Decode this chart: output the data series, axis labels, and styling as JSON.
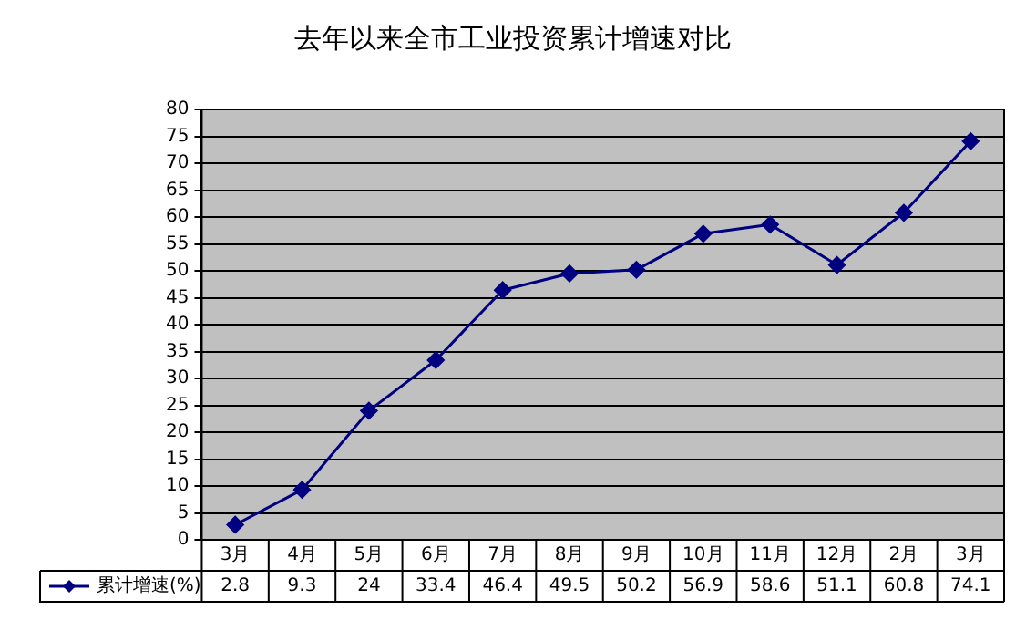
{
  "chart_data": {
    "type": "line",
    "title": "去年以来全市工业投资累计增速对比",
    "categories": [
      "3月",
      "4月",
      "5月",
      "6月",
      "7月",
      "8月",
      "9月",
      "10月",
      "11月",
      "12月",
      "2月",
      "3月"
    ],
    "series": [
      {
        "name": "累计增速(%)",
        "color": "#000080",
        "values": [
          2.8,
          9.3,
          24,
          33.4,
          46.4,
          49.5,
          50.2,
          56.9,
          58.6,
          51.1,
          60.8,
          74.1
        ]
      }
    ],
    "ylim": [
      0,
      80
    ],
    "yticks": [
      0,
      5,
      10,
      15,
      20,
      25,
      30,
      35,
      40,
      45,
      50,
      55,
      60,
      65,
      70,
      75,
      80
    ],
    "grid": "y",
    "legend": "bottom left",
    "marker": "diamond",
    "line_style": "solid",
    "data_labels": true
  }
}
